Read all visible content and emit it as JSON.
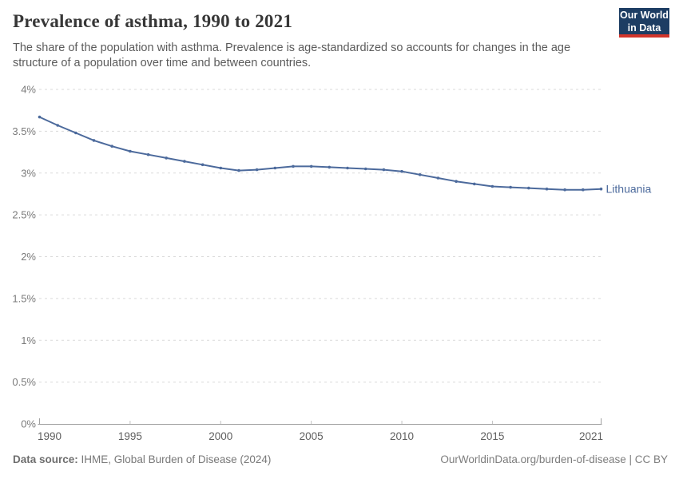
{
  "header": {
    "logo_line1": "Our World",
    "logo_line2": "in Data"
  },
  "chart_data": {
    "type": "line",
    "title": "Prevalence of asthma, 1990 to 2021",
    "subtitle": "The share of the population with asthma. Prevalence is age-standardized so accounts for changes in the age structure of a population over time and between countries.",
    "unit": "%",
    "grid": "horizontal-dashed",
    "legend_position": "end-of-line",
    "x": [
      1990,
      1991,
      1992,
      1993,
      1994,
      1995,
      1996,
      1997,
      1998,
      1999,
      2000,
      2001,
      2002,
      2003,
      2004,
      2005,
      2006,
      2007,
      2008,
      2009,
      2010,
      2011,
      2012,
      2013,
      2014,
      2015,
      2016,
      2017,
      2018,
      2019,
      2020,
      2021
    ],
    "series": [
      {
        "name": "Lithuania",
        "color": "#4c6a9c",
        "values": [
          3.67,
          3.57,
          3.48,
          3.39,
          3.32,
          3.26,
          3.22,
          3.18,
          3.14,
          3.1,
          3.06,
          3.03,
          3.04,
          3.06,
          3.08,
          3.08,
          3.07,
          3.06,
          3.05,
          3.04,
          3.02,
          2.98,
          2.94,
          2.9,
          2.87,
          2.84,
          2.83,
          2.82,
          2.81,
          2.8,
          2.8,
          2.81
        ]
      }
    ],
    "xlim": [
      1990,
      2021
    ],
    "ylim": [
      0,
      4
    ],
    "xticks": {
      "values": [
        1990,
        1995,
        2000,
        2005,
        2010,
        2015,
        2021
      ],
      "labels": [
        "1990",
        "1995",
        "2000",
        "2005",
        "2010",
        "2015",
        "2021"
      ]
    },
    "yticks": {
      "values": [
        0,
        0.5,
        1,
        1.5,
        2,
        2.5,
        3,
        3.5,
        4
      ],
      "labels": [
        "0%",
        "0.5%",
        "1%",
        "1.5%",
        "2%",
        "2.5%",
        "3%",
        "3.5%",
        "4%"
      ]
    }
  },
  "footer": {
    "source_label": "Data source:",
    "source_text": "IHME, Global Burden of Disease (2024)",
    "credit": "OurWorldinData.org/burden-of-disease | CC BY"
  },
  "colors": {
    "line": "#4c6a9c",
    "grid": "#dadada",
    "axis": "#a0a0a0",
    "interior_tick": "#c2c2c2",
    "y_tick_label": "#7a7a7a",
    "x_tick_label": "#5f5f5f",
    "logo_bg": "#1d3d63",
    "logo_stripe": "#d2352b"
  }
}
